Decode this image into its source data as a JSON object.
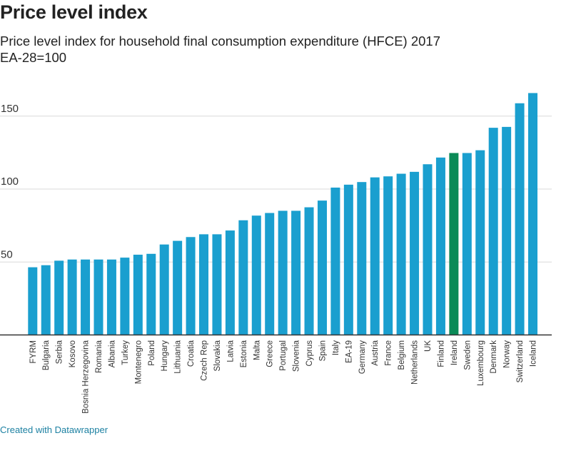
{
  "header": {
    "title": "Price level index",
    "subtitle": "Price level index for household final consumption expenditure (HFCE) 2017",
    "subtitle2": "EA-28=100"
  },
  "footer": {
    "credit": "Created with Datawrapper"
  },
  "chart_data": {
    "type": "bar",
    "title": "Price level index",
    "ylim": [
      0,
      165
    ],
    "yticks": [
      50,
      100,
      150
    ],
    "grid": true,
    "colors": {
      "default": "#1a9fcf",
      "highlight": "#0b8a57",
      "axis": "#333333",
      "grid": "#d9d9d9"
    },
    "highlight": "Ireland",
    "categories": [
      "FYRM",
      "Bulgaria",
      "Serbia",
      "Kosovo",
      "Bosnia Herzegovina",
      "Romania",
      "Albania",
      "Turkey",
      "Montenegro",
      "Poland",
      "Hungary",
      "Lithuania",
      "Croatia",
      "Czech Rep",
      "Slovakia",
      "Latvia",
      "Estonia",
      "Malta",
      "Greece",
      "Portugal",
      "Slovenia",
      "Cyprus",
      "Spain",
      "Italy",
      "EA-19",
      "Germany",
      "Austria",
      "France",
      "Belgium",
      "Netherlands",
      "UK",
      "Finland",
      "Ireland",
      "Sweden",
      "Luxembourg",
      "Denmark",
      "Norway",
      "Switzerland",
      "Iceland"
    ],
    "values": [
      46.4,
      47.8,
      50.9,
      51.7,
      51.7,
      51.7,
      51.7,
      53,
      55,
      55.6,
      62,
      64.5,
      67.1,
      69,
      69,
      71.6,
      78.6,
      81.8,
      83.6,
      85.1,
      85.1,
      87.5,
      92.1,
      101,
      103,
      104.8,
      108,
      108.7,
      110.5,
      111.8,
      117,
      121.6,
      124.7,
      124.7,
      126.6,
      142,
      142.6,
      158.8,
      165.8
    ]
  }
}
